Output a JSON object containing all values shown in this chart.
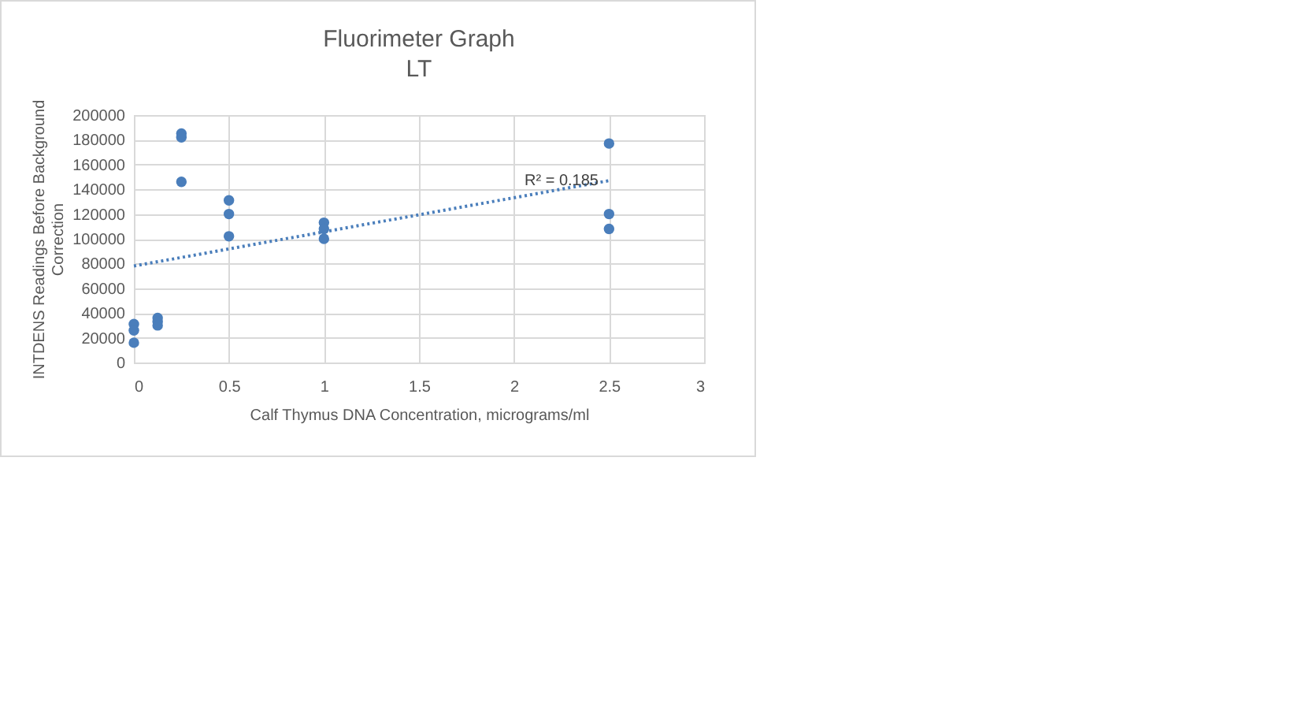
{
  "chart_data": {
    "type": "scatter",
    "title": "Fluorimeter Graph",
    "subtitle": "LT",
    "xlabel": "Calf Thymus DNA  Concentration, micrograms/ml",
    "ylabel": "INTDENS  Readings Before Background Correction",
    "xlim": [
      0,
      3
    ],
    "xticks": [
      0,
      0.5,
      1,
      1.5,
      2,
      2.5,
      3
    ],
    "ylim": [
      0,
      200000
    ],
    "yticks": [
      0,
      20000,
      40000,
      60000,
      80000,
      100000,
      120000,
      140000,
      160000,
      180000,
      200000
    ],
    "grid": true,
    "marker": "circle",
    "series": [
      {
        "color": "#4a7ebb",
        "x": [
          0,
          0,
          0,
          0.125,
          0.125,
          0.125,
          0.25,
          0.25,
          0.25,
          0.5,
          0.5,
          0.5,
          1,
          1,
          1,
          2.5,
          2.5,
          2.5
        ],
        "values": [
          31000,
          26000,
          16000,
          36000,
          33000,
          30000,
          185000,
          182000,
          146000,
          131000,
          120000,
          102000,
          113000,
          108000,
          100000,
          177000,
          120000,
          108000
        ]
      },
      {
        "type": "line",
        "color": "#4a7ebb",
        "line_style": "dotted",
        "marker": "none",
        "x": [
          0,
          2.5
        ],
        "values": [
          78000,
          147000
        ]
      }
    ],
    "annotations": [
      {
        "text": "R² = 0.185",
        "x": 2.25,
        "y": 147000
      }
    ]
  }
}
